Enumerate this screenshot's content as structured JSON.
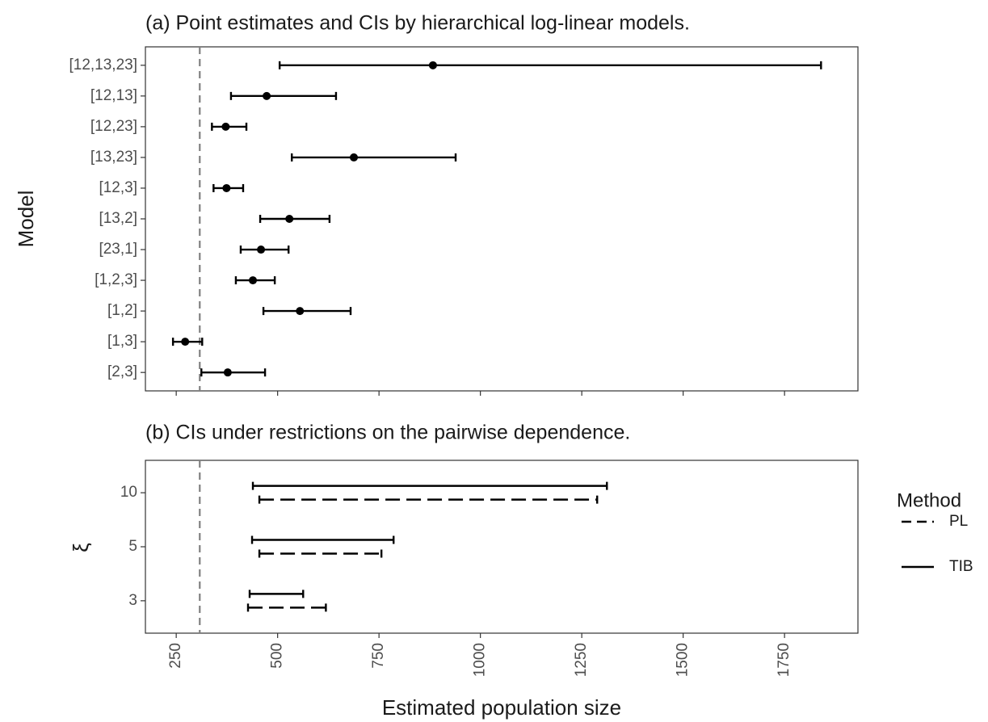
{
  "chart_data": [
    {
      "type": "dot-interval",
      "title": "(a) Point estimates and CIs by hierarchical log-linear models.",
      "y_label": "Model",
      "categories": [
        "[12,13,23]",
        "[12,13]",
        "[12,23]",
        "[13,23]",
        "[12,3]",
        "[13,2]",
        "[23,1]",
        "[1,2,3]",
        "[1,2]",
        "[1,3]",
        "[2,3]"
      ],
      "values": [
        883,
        473,
        372,
        688,
        374,
        529,
        459,
        439,
        555,
        272,
        377
      ],
      "lower": [
        505,
        385,
        338,
        535,
        342,
        457,
        409,
        397,
        465,
        242,
        312
      ],
      "upper": [
        1840,
        644,
        423,
        939,
        415,
        628,
        527,
        493,
        680,
        314,
        469
      ],
      "color": "#000000",
      "reference_line": 308,
      "xlim": [
        174,
        1931
      ],
      "xticks": [
        250,
        500,
        750,
        1000,
        1250,
        1500,
        1750
      ]
    },
    {
      "type": "interval",
      "title": "(b) CIs under restrictions on the pairwise dependence.",
      "y_label": "ξ",
      "x_label": "Estimated population size",
      "categories": [
        "10",
        "5",
        "3"
      ],
      "series": [
        {
          "name": "PL",
          "linetype": "dashed",
          "color": "#000000",
          "lower": [
            455,
            455,
            427
          ],
          "upper": [
            1288,
            756,
            619
          ]
        },
        {
          "name": "TIB",
          "linetype": "solid",
          "color": "#000000",
          "lower": [
            439,
            437,
            431
          ],
          "upper": [
            1312,
            786,
            563
          ]
        }
      ],
      "legend_title": "Method",
      "legend": "right",
      "reference_line": 308,
      "xlim": [
        174,
        1931
      ],
      "xticks": [
        250,
        500,
        750,
        1000,
        1250,
        1500,
        1750
      ]
    }
  ]
}
